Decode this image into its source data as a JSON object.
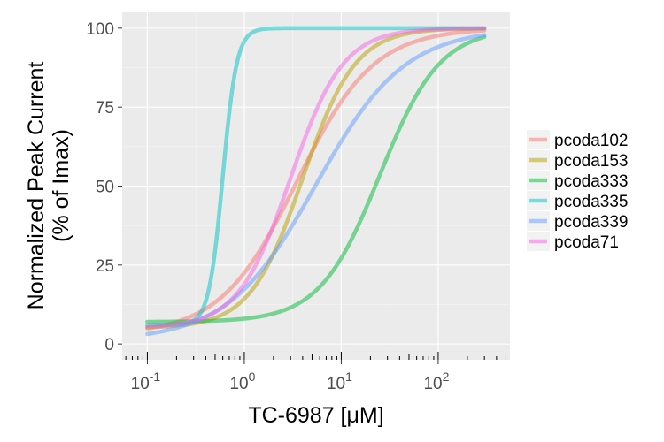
{
  "chart_data": {
    "type": "line",
    "xlabel": "TC-6987 [μM]",
    "ylabel_line1": "Normalized Peak Current",
    "ylabel_line2": "(% of Imax)",
    "x_scale": "log",
    "xlim": [
      0.1,
      300
    ],
    "ylim": [
      0,
      100
    ],
    "y_ticks": [
      0,
      25,
      50,
      75,
      100
    ],
    "x_tick_labels": [
      {
        "base": "10",
        "exp": "-1"
      },
      {
        "base": "10",
        "exp": "0"
      },
      {
        "base": "10",
        "exp": "1"
      },
      {
        "base": "10",
        "exp": "2"
      }
    ],
    "grid": true,
    "legend_position": "right",
    "series": [
      {
        "name": "pcoda102",
        "color": "#F8766D",
        "bottom": 3,
        "top": 100,
        "ec50": 3.5,
        "hill": 1.1
      },
      {
        "name": "pcoda153",
        "color": "#B79F00",
        "bottom": 5,
        "top": 100,
        "ec50": 4.0,
        "hill": 1.6
      },
      {
        "name": "pcoda333",
        "color": "#00BA38",
        "bottom": 7,
        "top": 100,
        "ec50": 25.0,
        "hill": 1.4
      },
      {
        "name": "pcoda335",
        "color": "#00BFC4",
        "bottom": 6,
        "top": 100,
        "ec50": 0.6,
        "hill": 6.0
      },
      {
        "name": "pcoda339",
        "color": "#619CFF",
        "bottom": 1,
        "top": 100,
        "ec50": 5.5,
        "hill": 0.95
      },
      {
        "name": "pcoda71",
        "color": "#F564E3",
        "bottom": 5,
        "top": 100,
        "ec50": 3.0,
        "hill": 1.6
      }
    ]
  }
}
